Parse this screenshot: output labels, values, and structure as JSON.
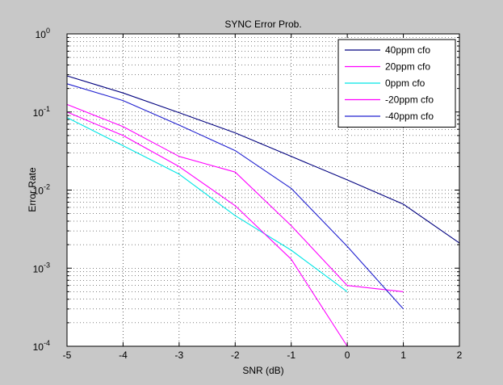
{
  "chart_data": {
    "type": "line",
    "title": "SYNC Error Prob.",
    "xlabel": "SNR (dB)",
    "ylabel": "Error Rate",
    "xlim": [
      -5,
      2
    ],
    "ylim": [
      0.0001,
      1
    ],
    "yscale": "log",
    "grid": true,
    "legend_position": "top-right",
    "x_ticks": [
      "-5",
      "-4",
      "-3",
      "-2",
      "-1",
      "0",
      "1",
      "2"
    ],
    "y_ticks": [
      {
        "base": "10",
        "exp": "0"
      },
      {
        "base": "10",
        "exp": "-1"
      },
      {
        "base": "10",
        "exp": "-2"
      },
      {
        "base": "10",
        "exp": "-3"
      },
      {
        "base": "10",
        "exp": "-4"
      }
    ],
    "series": [
      {
        "name": "40ppm cfo",
        "color": "#00007f",
        "x": [
          -5,
          -4,
          -3,
          -2,
          -1,
          0,
          1,
          2
        ],
        "y": [
          0.29,
          0.175,
          0.098,
          0.054,
          0.027,
          0.0135,
          0.0066,
          0.0021
        ]
      },
      {
        "name": "20ppm cfo",
        "color": "#ff00ff",
        "x": [
          -5,
          -4,
          -3,
          -2,
          -1,
          0,
          1
        ],
        "y": [
          0.125,
          0.065,
          0.027,
          0.017,
          0.0035,
          0.0006,
          0.0005
        ]
      },
      {
        "name": "0ppm cfo",
        "color": "#00e5e5",
        "x": [
          -5,
          -4,
          -3,
          -2,
          -1,
          0
        ],
        "y": [
          0.085,
          0.037,
          0.016,
          0.0047,
          0.0017,
          0.0005
        ]
      },
      {
        "name": "-20ppm cfo",
        "color": "#ff00ff",
        "x": [
          -5,
          -4,
          -3,
          -2,
          -1,
          0
        ],
        "y": [
          0.1,
          0.05,
          0.02,
          0.0063,
          0.0013,
          0.0001
        ]
      },
      {
        "name": "-40ppm cfo",
        "color": "#2020d0",
        "x": [
          -5,
          -4,
          -3,
          -2,
          -1,
          0,
          1
        ],
        "y": [
          0.23,
          0.14,
          0.068,
          0.032,
          0.0105,
          0.0019,
          0.0003
        ]
      }
    ]
  }
}
